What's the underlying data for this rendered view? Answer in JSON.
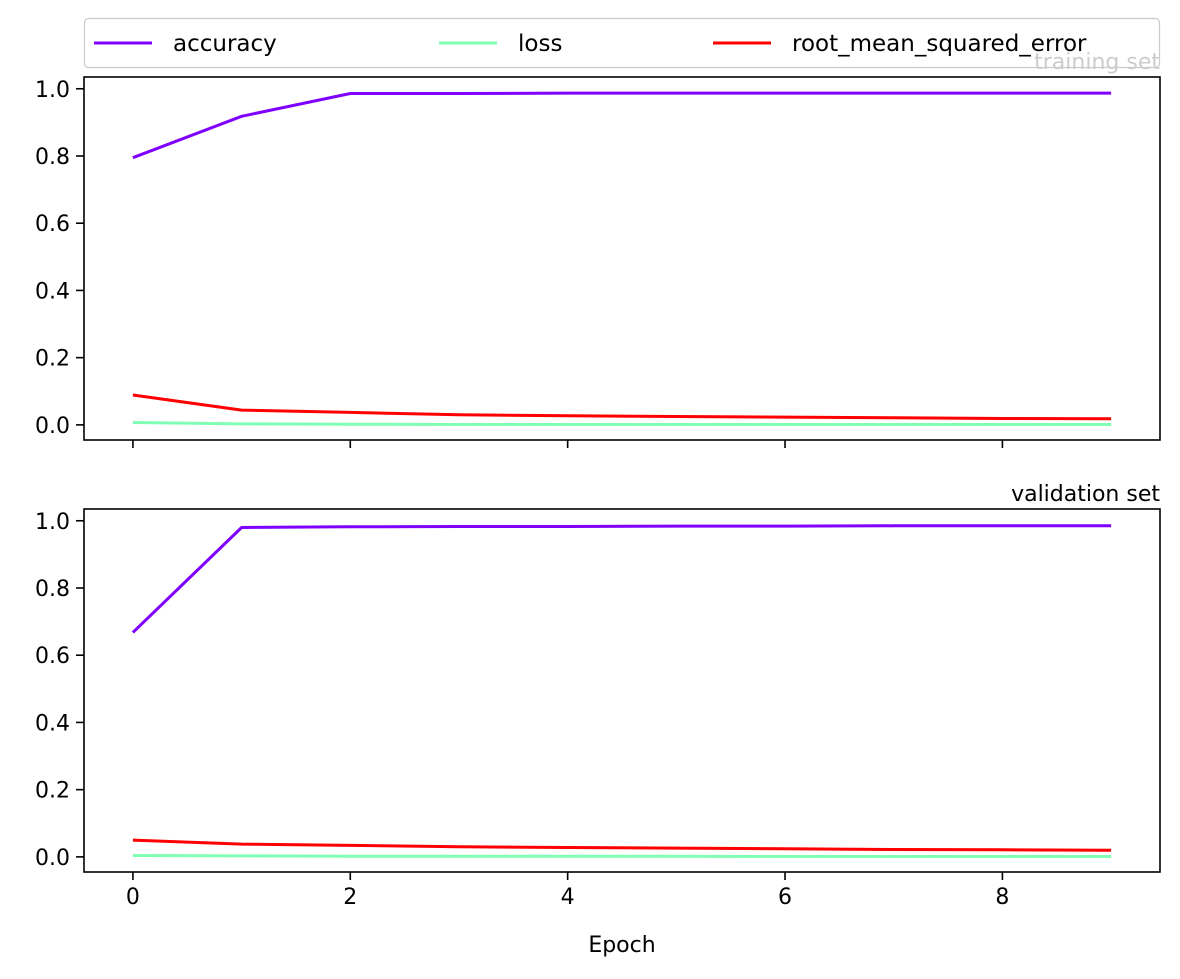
{
  "chart_data": {
    "type": "line",
    "x": [
      0,
      1,
      2,
      3,
      4,
      5,
      6,
      7,
      8,
      9
    ],
    "xlabel": "Epoch",
    "legend": {
      "placement": "top",
      "entries": [
        {
          "name": "accuracy",
          "color": "#8000ff"
        },
        {
          "name": "loss",
          "color": "#80ffb4"
        },
        {
          "name": "root_mean_squared_error",
          "color": "#ff0000"
        }
      ]
    },
    "panels": [
      {
        "title": "training set",
        "title_color": "#cccccc",
        "ylim": [
          -0.045,
          1.035
        ],
        "yticks": [
          {
            "v": 0.0,
            "label": "0.0"
          },
          {
            "v": 0.2,
            "label": "0.2"
          },
          {
            "v": 0.4,
            "label": "0.4"
          },
          {
            "v": 0.6,
            "label": "0.6"
          },
          {
            "v": 0.8,
            "label": "0.8"
          },
          {
            "v": 1.0,
            "label": "1.0"
          }
        ],
        "series": [
          {
            "name": "accuracy",
            "color": "#8000ff",
            "values": [
              0.795,
              0.918,
              0.986,
              0.986,
              0.987,
              0.987,
              0.987,
              0.987,
              0.987,
              0.987
            ]
          },
          {
            "name": "loss",
            "color": "#80ffb4",
            "values": [
              0.007,
              0.003,
              0.002,
              0.001,
              0.001,
              0.001,
              0.001,
              0.001,
              0.001,
              0.001
            ]
          },
          {
            "name": "root_mean_squared_error",
            "color": "#ff0000",
            "values": [
              0.089,
              0.044,
              0.037,
              0.03,
              0.027,
              0.025,
              0.023,
              0.021,
              0.019,
              0.018
            ]
          }
        ]
      },
      {
        "title": "validation set",
        "title_color": "#000000",
        "ylim": [
          -0.045,
          1.035
        ],
        "yticks": [
          {
            "v": 0.0,
            "label": "0.0"
          },
          {
            "v": 0.2,
            "label": "0.2"
          },
          {
            "v": 0.4,
            "label": "0.4"
          },
          {
            "v": 0.6,
            "label": "0.6"
          },
          {
            "v": 0.8,
            "label": "0.8"
          },
          {
            "v": 1.0,
            "label": "1.0"
          }
        ],
        "series": [
          {
            "name": "accuracy",
            "color": "#8000ff",
            "values": [
              0.668,
              0.98,
              0.982,
              0.983,
              0.983,
              0.984,
              0.984,
              0.985,
              0.985,
              0.985
            ]
          },
          {
            "name": "loss",
            "color": "#80ffb4",
            "values": [
              0.004,
              0.003,
              0.002,
              0.002,
              0.002,
              0.002,
              0.001,
              0.001,
              0.001,
              0.001
            ]
          },
          {
            "name": "root_mean_squared_error",
            "color": "#ff0000",
            "values": [
              0.05,
              0.038,
              0.034,
              0.03,
              0.028,
              0.026,
              0.024,
              0.022,
              0.021,
              0.02
            ]
          }
        ]
      }
    ],
    "xticks": [
      {
        "v": 0,
        "label": "0"
      },
      {
        "v": 2,
        "label": "2"
      },
      {
        "v": 4,
        "label": "4"
      },
      {
        "v": 6,
        "label": "6"
      },
      {
        "v": 8,
        "label": "8"
      }
    ],
    "xlim": [
      -0.45,
      9.45
    ],
    "grid": false
  }
}
